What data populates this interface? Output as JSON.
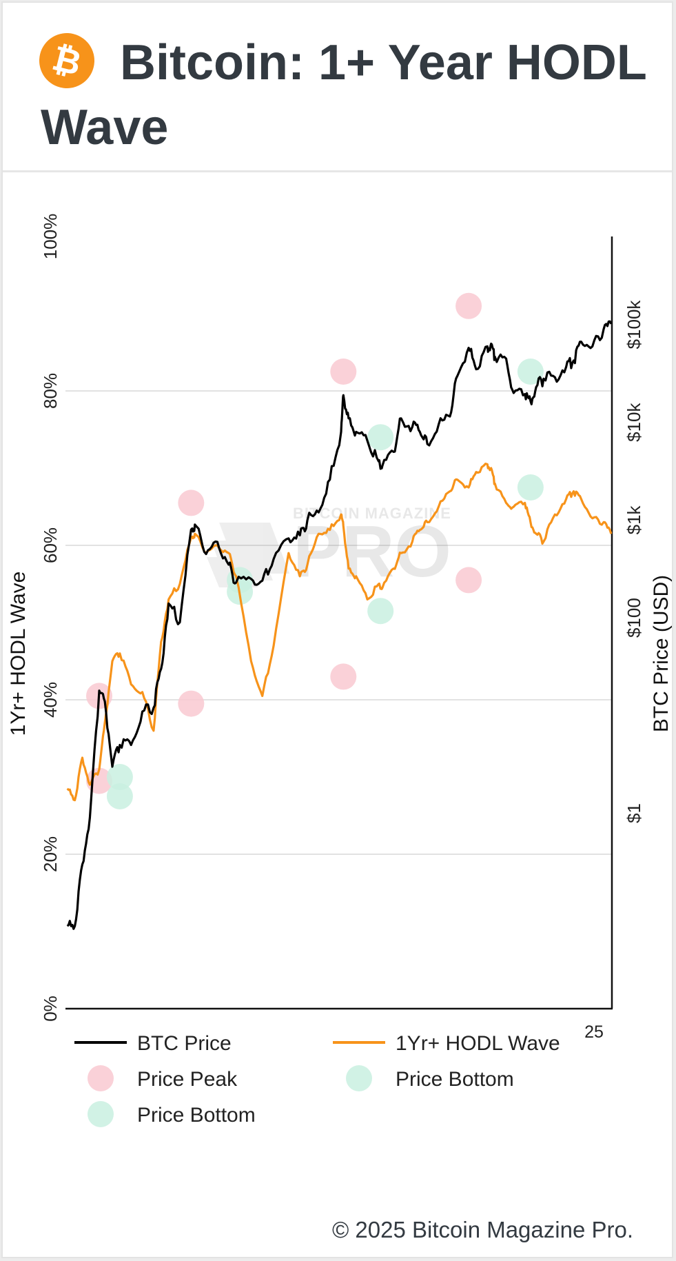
{
  "title": "Bitcoin: 1+ Year HODL Wave",
  "logo_symbol": "₿",
  "footer": "© 2025 Bitcoin Magazine Pro.",
  "watermark": {
    "top": "BITCOIN MAGAZINE",
    "main": "PRO"
  },
  "colors": {
    "btc_price": "#000000",
    "hodl_wave": "#f7931a",
    "price_peak": "#f9c9d1",
    "price_bottom": "#c9f0e0",
    "brand": "#f7931a",
    "text": "#333a41"
  },
  "chart_data": {
    "type": "line",
    "title": "Bitcoin: 1+ Year HODL Wave",
    "x_tick_labels": [
      "25"
    ],
    "left_axis": {
      "label": "1Yr+ HODL Wave",
      "range": [
        0,
        100
      ],
      "ticks": [
        0,
        20,
        40,
        60,
        80,
        100
      ],
      "tick_labels": [
        "0%",
        "20%",
        "40%",
        "60%",
        "80%",
        "100%"
      ]
    },
    "right_axis": {
      "label": "BTC Price (USD)",
      "scale": "log",
      "range": [
        0.01,
        800000
      ],
      "ticks": [
        1,
        100,
        1000,
        10000,
        100000
      ],
      "tick_labels": [
        "$1",
        "$100",
        "$1k",
        "$10k",
        "$100k"
      ]
    },
    "grid": "horizontal",
    "x": [
      2010.6,
      2010.8,
      2011.0,
      2011.2,
      2011.45,
      2011.6,
      2011.8,
      2012.0,
      2012.3,
      2012.6,
      2012.9,
      2013.1,
      2013.3,
      2013.6,
      2013.9,
      2014.0,
      2014.3,
      2014.6,
      2014.9,
      2015.1,
      2015.5,
      2015.8,
      2016.1,
      2016.5,
      2016.8,
      2017.0,
      2017.3,
      2017.6,
      2017.9,
      2017.96,
      2018.1,
      2018.3,
      2018.6,
      2018.9,
      2019.0,
      2019.3,
      2019.5,
      2019.8,
      2020.0,
      2020.2,
      2020.5,
      2020.8,
      2021.0,
      2021.3,
      2021.5,
      2021.8,
      2021.9,
      2022.0,
      2022.3,
      2022.5,
      2022.8,
      2022.95,
      2023.1,
      2023.3,
      2023.6,
      2023.9,
      2024.1,
      2024.3,
      2024.6,
      2024.9,
      2025.1
    ],
    "series": [
      {
        "name": "BTC Price",
        "values": [
          0.07,
          0.07,
          0.3,
          0.9,
          18,
          14,
          3,
          5,
          5,
          11,
          12,
          30,
          140,
          90,
          800,
          900,
          450,
          600,
          350,
          230,
          250,
          240,
          400,
          650,
          700,
          1000,
          1200,
          2600,
          8000,
          19000,
          11000,
          8000,
          6500,
          4000,
          3600,
          5000,
          11000,
          9000,
          8000,
          6000,
          9500,
          11500,
          30000,
          58000,
          35000,
          60000,
          64000,
          47000,
          45000,
          20000,
          19500,
          16500,
          23000,
          28000,
          29000,
          37000,
          43000,
          67000,
          60000,
          90000,
          102000
        ]
      },
      {
        "name": "1Yr+ HODL Wave",
        "values": [
          28.5,
          27,
          32.5,
          29,
          31,
          37,
          45,
          46,
          42,
          41,
          36,
          47.5,
          53,
          55,
          61,
          61.5,
          59,
          60,
          59,
          56,
          45,
          40.5,
          47,
          59,
          56,
          57.5,
          61.5,
          62,
          64,
          62.5,
          57,
          56,
          53,
          55,
          54.5,
          57,
          59,
          60.5,
          62,
          63,
          65,
          67,
          68.5,
          67.5,
          69.5,
          70.5,
          70,
          68,
          65.5,
          65,
          65.5,
          63,
          61.5,
          60.5,
          64,
          66,
          67,
          66,
          63.5,
          63,
          61.5
        ]
      }
    ],
    "price_peaks": [
      {
        "x": 2011.45,
        "pct": 40.5
      },
      {
        "x": 2011.45,
        "pct": 29.5
      },
      {
        "x": 2013.9,
        "pct": 65.5
      },
      {
        "x": 2013.9,
        "pct": 39.5
      },
      {
        "x": 2017.96,
        "pct": 82.5
      },
      {
        "x": 2017.96,
        "pct": 43
      },
      {
        "x": 2021.3,
        "pct": 91
      },
      {
        "x": 2021.3,
        "pct": 55.5
      }
    ],
    "price_bottoms": [
      {
        "x": 2012.0,
        "pct": 27.5
      },
      {
        "x": 2012.0,
        "pct": 30
      },
      {
        "x": 2015.2,
        "pct": 55.5
      },
      {
        "x": 2015.2,
        "pct": 54
      },
      {
        "x": 2018.95,
        "pct": 74
      },
      {
        "x": 2018.95,
        "pct": 51.5
      },
      {
        "x": 2022.95,
        "pct": 82.5
      },
      {
        "x": 2022.95,
        "pct": 67.5
      }
    ],
    "legend": [
      {
        "kind": "line",
        "label": "BTC Price"
      },
      {
        "kind": "line",
        "label": "1Yr+ HODL Wave"
      },
      {
        "kind": "circle",
        "label": "Price Peak"
      },
      {
        "kind": "circle",
        "label": "Price Bottom"
      },
      {
        "kind": "circle",
        "label": "Price Bottom"
      }
    ],
    "legend_position": "bottom"
  }
}
